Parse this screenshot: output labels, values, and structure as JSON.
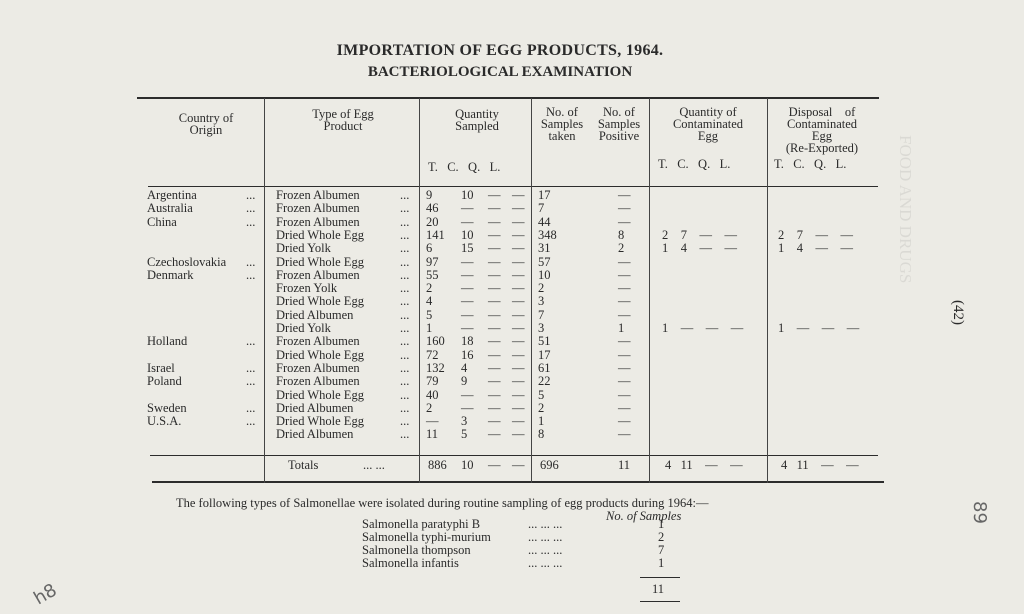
{
  "title": "IMPORTATION OF EGG PRODUCTS, 1964.",
  "subtitle": "BACTERIOLOGICAL EXAMINATION",
  "headers": {
    "country": "Country of\nOrigin",
    "type": "Type of Egg\nProduct",
    "quantity": "Quantity\nSampled",
    "samples": "No. of\nSamples\ntaken",
    "positive": "No. of\nSamples\nPositive",
    "contaminated": "Quantity of\nContaminated\nEgg",
    "disposal": "Disposal    of\nContaminated\nEgg\n(Re-Exported)",
    "units": "T.   C.   Q.   L."
  },
  "rows": [
    {
      "country": "Argentina",
      "type": "Frozen Albumen",
      "t": "9",
      "c": "10",
      "q": "—",
      "l": "—",
      "taken": "17",
      "pos": "—",
      "cont": "",
      "disp": ""
    },
    {
      "country": "Australia",
      "type": "Frozen Albumen",
      "t": "46",
      "c": "—",
      "q": "—",
      "l": "—",
      "taken": "7",
      "pos": "—",
      "cont": "",
      "disp": ""
    },
    {
      "country": "China",
      "type": "Frozen Albumen",
      "t": "20",
      "c": "—",
      "q": "—",
      "l": "—",
      "taken": "44",
      "pos": "—",
      "cont": "",
      "disp": ""
    },
    {
      "country": "",
      "type": "Dried Whole Egg",
      "t": "141",
      "c": "10",
      "q": "—",
      "l": "—",
      "taken": "348",
      "pos": "8",
      "cont": "2    7    —    —",
      "disp": "2    7    —    —"
    },
    {
      "country": "",
      "type": "Dried Yolk",
      "t": "6",
      "c": "15",
      "q": "—",
      "l": "—",
      "taken": "31",
      "pos": "2",
      "cont": "1    4    —    —",
      "disp": "1    4    —    —"
    },
    {
      "country": "Czechoslovakia",
      "type": "Dried Whole Egg",
      "t": "97",
      "c": "—",
      "q": "—",
      "l": "—",
      "taken": "57",
      "pos": "—",
      "cont": "",
      "disp": ""
    },
    {
      "country": "Denmark",
      "type": "Frozen Albumen",
      "t": "55",
      "c": "—",
      "q": "—",
      "l": "—",
      "taken": "10",
      "pos": "—",
      "cont": "",
      "disp": ""
    },
    {
      "country": "",
      "type": "Frozen Yolk",
      "t": "2",
      "c": "—",
      "q": "—",
      "l": "—",
      "taken": "2",
      "pos": "—",
      "cont": "",
      "disp": ""
    },
    {
      "country": "",
      "type": "Dried Whole Egg",
      "t": "4",
      "c": "—",
      "q": "—",
      "l": "—",
      "taken": "3",
      "pos": "—",
      "cont": "",
      "disp": ""
    },
    {
      "country": "",
      "type": "Dried Albumen",
      "t": "5",
      "c": "—",
      "q": "—",
      "l": "—",
      "taken": "7",
      "pos": "—",
      "cont": "",
      "disp": ""
    },
    {
      "country": "",
      "type": "Dried Yolk",
      "t": "1",
      "c": "—",
      "q": "—",
      "l": "—",
      "taken": "3",
      "pos": "1",
      "cont": "1    —    —    —",
      "disp": "1    —    —    —"
    },
    {
      "country": "Holland",
      "type": "Frozen Albumen",
      "t": "160",
      "c": "18",
      "q": "—",
      "l": "—",
      "taken": "51",
      "pos": "—",
      "cont": "",
      "disp": ""
    },
    {
      "country": "",
      "type": "Dried Whole Egg",
      "t": "72",
      "c": "16",
      "q": "—",
      "l": "—",
      "taken": "17",
      "pos": "—",
      "cont": "",
      "disp": ""
    },
    {
      "country": "Israel",
      "type": "Frozen Albumen",
      "t": "132",
      "c": "4",
      "q": "—",
      "l": "—",
      "taken": "61",
      "pos": "—",
      "cont": "",
      "disp": ""
    },
    {
      "country": "Poland",
      "type": "Frozen Albumen",
      "t": "79",
      "c": "9",
      "q": "—",
      "l": "—",
      "taken": "22",
      "pos": "—",
      "cont": "",
      "disp": ""
    },
    {
      "country": "",
      "type": "Dried Whole Egg",
      "t": "40",
      "c": "—",
      "q": "—",
      "l": "—",
      "taken": "5",
      "pos": "—",
      "cont": "",
      "disp": ""
    },
    {
      "country": "Sweden",
      "type": "Dried Albumen",
      "t": "2",
      "c": "—",
      "q": "—",
      "l": "—",
      "taken": "2",
      "pos": "—",
      "cont": "",
      "disp": ""
    },
    {
      "country": "U.S.A.",
      "type": "Dried Whole Egg",
      "t": "—",
      "c": "3",
      "q": "—",
      "l": "—",
      "taken": "1",
      "pos": "—",
      "cont": "",
      "disp": ""
    },
    {
      "country": "",
      "type": "Dried Albumen",
      "t": "11",
      "c": "5",
      "q": "—",
      "l": "—",
      "taken": "8",
      "pos": "—",
      "cont": "",
      "disp": ""
    }
  ],
  "totals": {
    "label": "Totals",
    "t": "886",
    "c": "10",
    "q": "—",
    "l": "—",
    "taken": "696",
    "pos": "11",
    "cont": "4   11    —    —",
    "disp": "4   11    —    —"
  },
  "footnote": "The following types of Salmonellae were isolated during routine sampling of egg products during 1964:—",
  "samples_header": "No. of Samples",
  "salmonella": [
    {
      "name": "Salmonella paratyphi B",
      "count": "1"
    },
    {
      "name": "Salmonella typhi-murium",
      "count": "2"
    },
    {
      "name": "Salmonella thompson",
      "count": "7"
    },
    {
      "name": "Salmonella infantis",
      "count": "1"
    }
  ],
  "salmonella_total": "11",
  "page_number": "(42)",
  "ghost_text": "FOOD AND DRUGS",
  "pencil_marks": [
    "89",
    "h8"
  ]
}
